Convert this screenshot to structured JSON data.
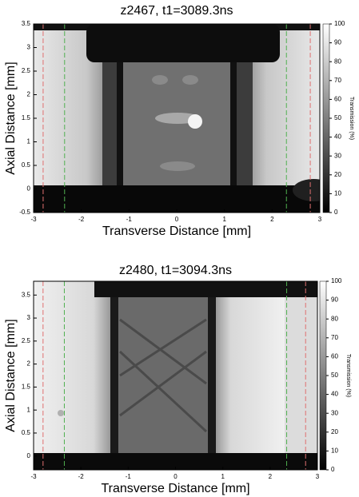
{
  "chart_data": [
    {
      "type": "image",
      "title": "z2467, t1=3089.3ns",
      "x_label": "Transverse Distance [mm]",
      "y_label": "Axial Distance [mm]",
      "xlim": [
        -3,
        3
      ],
      "xticks": [
        -3,
        -2,
        -1,
        0,
        1,
        2,
        3
      ],
      "ylim": [
        -0.5,
        3.5
      ],
      "yticks": [
        -0.5,
        0,
        0.5,
        1,
        1.5,
        2,
        2.5,
        3,
        3.5
      ],
      "colorbar": {
        "label": "Transmission (%)",
        "lim": [
          0,
          100
        ],
        "ticks": [
          0,
          10,
          20,
          30,
          40,
          50,
          60,
          70,
          80,
          90,
          100
        ]
      },
      "vlines": [
        {
          "x": -2.8,
          "color": "#e07070"
        },
        {
          "x": -2.35,
          "color": "#50b050"
        },
        {
          "x": 2.3,
          "color": "#50b050"
        },
        {
          "x": 2.8,
          "color": "#e07070"
        }
      ]
    },
    {
      "type": "image",
      "title": "z2480, t1=3094.3ns",
      "x_label": "Transverse Distance [mm]",
      "y_label": "Axial Distance [mm]",
      "xlim": [
        -3,
        3
      ],
      "xticks": [
        -3,
        -2,
        -1,
        0,
        1,
        2,
        3
      ],
      "ylim": [
        -0.3,
        3.8
      ],
      "yticks": [
        0,
        0.5,
        1,
        1.5,
        2,
        2.5,
        3,
        3.5
      ],
      "colorbar": {
        "label": "Transmission (%)",
        "lim": [
          0,
          100
        ],
        "ticks": [
          0,
          10,
          20,
          30,
          40,
          50,
          60,
          70,
          80,
          90,
          100
        ]
      },
      "vlines": [
        {
          "x": -2.8,
          "color": "#e07070"
        },
        {
          "x": -2.35,
          "color": "#50b050"
        },
        {
          "x": 2.35,
          "color": "#50b050"
        },
        {
          "x": 2.75,
          "color": "#e07070"
        }
      ]
    }
  ]
}
